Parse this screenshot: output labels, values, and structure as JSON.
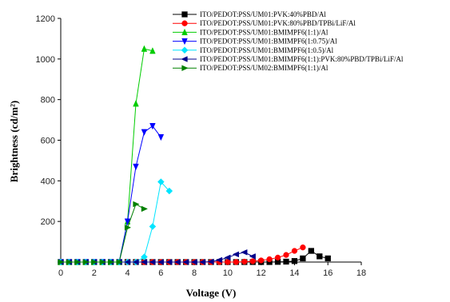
{
  "chart_data": {
    "type": "scatter",
    "xlabel": "Voltage (V)",
    "ylabel": "Brightness (cd/m²)",
    "xlim": [
      0,
      18
    ],
    "ylim": [
      0,
      1200
    ],
    "x_ticks": [
      0,
      2,
      4,
      6,
      8,
      10,
      12,
      14,
      16,
      18
    ],
    "y_ticks": [
      200,
      400,
      600,
      800,
      1000,
      1200
    ],
    "grid": false,
    "legend_position": "top-right",
    "series": [
      {
        "name": "ITO/PEDOT:PSS/UM01:PVK:40%PBD/Al",
        "color": "#000000",
        "marker": "square",
        "x": [
          0,
          0.5,
          1,
          1.5,
          2,
          2.5,
          3,
          3.5,
          4,
          4.5,
          5,
          5.5,
          6,
          6.5,
          7,
          7.5,
          8,
          8.5,
          9,
          9.5,
          10,
          10.5,
          11,
          11.5,
          12,
          12.5,
          13,
          13.5,
          14,
          14.5,
          15,
          15.5,
          16
        ],
        "y": [
          0,
          0,
          0,
          0,
          0,
          0,
          0,
          0,
          0,
          0,
          0,
          0,
          0,
          0,
          0,
          0,
          0,
          0,
          0,
          0,
          0,
          0,
          0,
          0,
          0,
          0,
          1,
          2,
          5,
          18,
          55,
          28,
          18
        ]
      },
      {
        "name": "ITO/PEDOT:PSS/UM01:PVK:80%PBD/TPBi/LiF/Al",
        "color": "#ff0000",
        "marker": "circle",
        "x": [
          0,
          0.5,
          1,
          1.5,
          2,
          2.5,
          3,
          3.5,
          4,
          4.5,
          5,
          5.5,
          6,
          6.5,
          7,
          7.5,
          8,
          8.5,
          9,
          9.5,
          10,
          10.5,
          11,
          11.5,
          12,
          12.5,
          13,
          13.5,
          14,
          14.5
        ],
        "y": [
          0,
          0,
          0,
          0,
          0,
          0,
          0,
          0,
          0,
          0,
          0,
          0,
          0,
          0,
          0,
          0,
          0,
          0,
          0,
          0,
          0,
          0,
          2,
          4,
          8,
          14,
          22,
          35,
          55,
          72
        ]
      },
      {
        "name": "ITO/PEDOT:PSS/UM01:BMIMPF6(1:1)/Al",
        "color": "#00cc00",
        "marker": "triangle-up",
        "x": [
          0,
          0.5,
          1,
          1.5,
          2,
          2.5,
          3,
          3.5,
          4,
          4.5,
          5,
          5.5
        ],
        "y": [
          0,
          0,
          0,
          0,
          0,
          0,
          0,
          0,
          200,
          780,
          1050,
          1040
        ]
      },
      {
        "name": "ITO/PEDOT:PSS/UM01:BMIMPF6(1:0.75)/Al",
        "color": "#0000ff",
        "marker": "triangle-down",
        "x": [
          0,
          0.5,
          1,
          1.5,
          2,
          2.5,
          3,
          3.5,
          4,
          4.5,
          5,
          5.5,
          6
        ],
        "y": [
          0,
          0,
          0,
          0,
          0,
          0,
          0,
          0,
          200,
          470,
          640,
          670,
          615
        ]
      },
      {
        "name": "ITO/PEDOT:PSS/UM01:BMIMPF6(1:0.5)/Al",
        "color": "#00e5ff",
        "marker": "diamond",
        "x": [
          0,
          0.5,
          1,
          1.5,
          2,
          2.5,
          3,
          3.5,
          4,
          4.5,
          5,
          5.5,
          6,
          6.5
        ],
        "y": [
          0,
          0,
          0,
          0,
          0,
          0,
          0,
          0,
          0,
          0,
          25,
          175,
          395,
          350
        ]
      },
      {
        "name": "ITO/PEDOT:PSS/UM01:BMIMPF6(1:1):PVK:80%PBD/TPBi/LiF/Al",
        "color": "#00008b",
        "marker": "triangle-left",
        "x": [
          0,
          0.5,
          1,
          1.5,
          2,
          2.5,
          3,
          3.5,
          4,
          4.5,
          5,
          5.5,
          6,
          6.5,
          7,
          7.5,
          8,
          8.5,
          9,
          9.5,
          10,
          10.5,
          11,
          11.5
        ],
        "y": [
          0,
          0,
          0,
          0,
          0,
          0,
          0,
          0,
          0,
          0,
          0,
          0,
          0,
          0,
          0,
          0,
          0,
          0,
          2,
          10,
          22,
          38,
          48,
          28
        ]
      },
      {
        "name": "ITO/PEDOT:PSS/UM02:BMIMPF6(1:1)/Al",
        "color": "#008000",
        "marker": "triangle-right",
        "x": [
          0,
          0.5,
          1,
          1.5,
          2,
          2.5,
          3,
          3.5,
          4,
          4.5,
          5
        ],
        "y": [
          0,
          0,
          0,
          0,
          0,
          0,
          0,
          0,
          170,
          285,
          262
        ]
      }
    ]
  }
}
